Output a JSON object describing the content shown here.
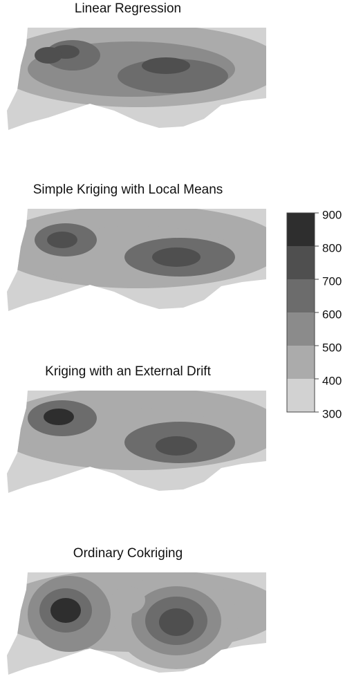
{
  "panels": [
    {
      "title": "Linear Regression"
    },
    {
      "title": "Simple Kriging with Local Means"
    },
    {
      "title": "Kriging with an External Drift"
    },
    {
      "title": "Ordinary Cokriging"
    }
  ],
  "legend": {
    "ticks": [
      900,
      800,
      700,
      600,
      500,
      400,
      300
    ],
    "colors": [
      "#2e2e2e",
      "#4f4f4f",
      "#6c6c6c",
      "#8b8b8b",
      "#ababab",
      "#d2d2d2"
    ]
  }
}
